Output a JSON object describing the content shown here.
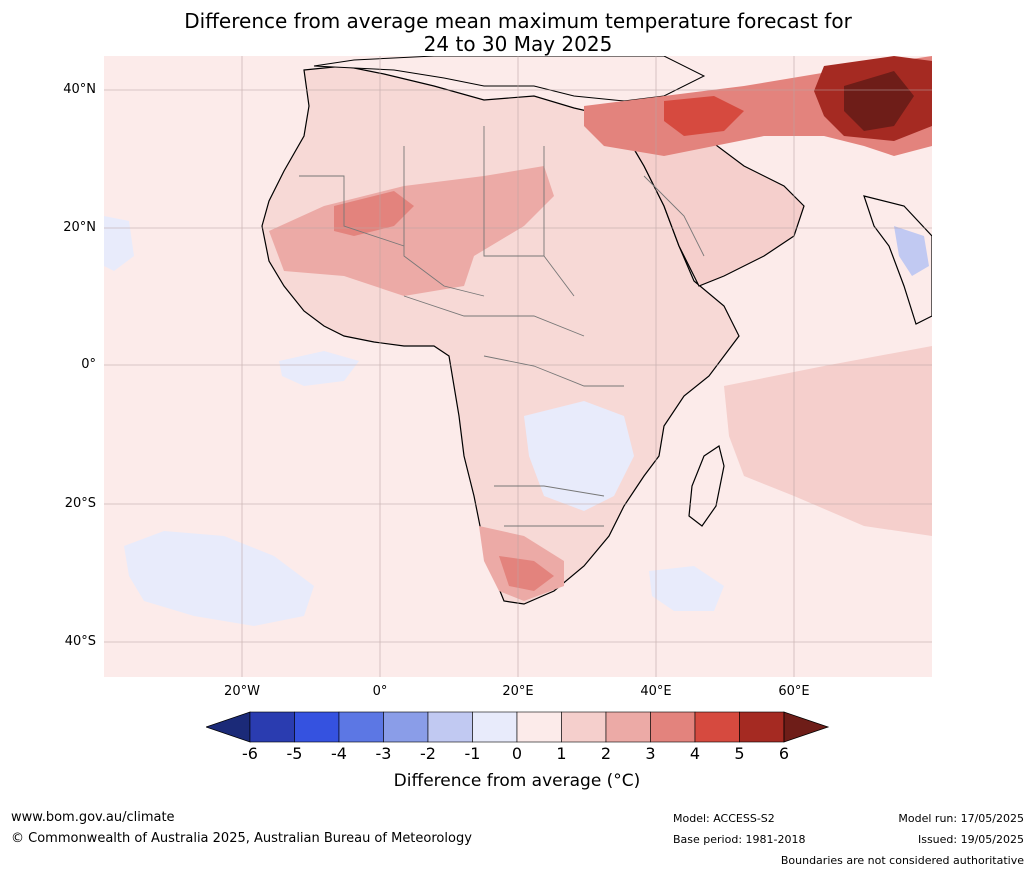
{
  "title_line1": "Difference from average mean maximum temperature forecast for",
  "title_line2": "24 to 30 May 2025",
  "map": {
    "lat_labels": [
      "40°N",
      "20°N",
      "0°",
      "20°S",
      "40°S"
    ],
    "lon_labels": [
      "20°W",
      "0°",
      "20°E",
      "40°E",
      "60°E"
    ]
  },
  "colorbar": {
    "ticks": [
      "-6",
      "-5",
      "-4",
      "-3",
      "-2",
      "-1",
      "0",
      "1",
      "2",
      "3",
      "4",
      "5",
      "6"
    ],
    "colors": [
      "#1b2a78",
      "#2a3cb0",
      "#3552e0",
      "#5c77e4",
      "#8a9de8",
      "#c1c9f2",
      "#e8ebfb",
      "#fcebea",
      "#f5cfcc",
      "#ecaaa6",
      "#e3837d",
      "#d64a3f",
      "#a52a22",
      "#6e1d18"
    ],
    "label": "Difference from average ($^\\circ$C)",
    "label_display": "Difference from average (°C)"
  },
  "footer": {
    "url": "www.bom.gov.au/climate",
    "copyright": "© Commonwealth of Australia 2025, Australian Bureau of Meteorology",
    "model": "Model: ACCESS-S2",
    "base_period": "Base period: 1981-2018",
    "model_run": "Model run: 17/05/2025",
    "issued": "Issued: 19/05/2025",
    "disclaimer": "Boundaries are not considered authoritative"
  }
}
